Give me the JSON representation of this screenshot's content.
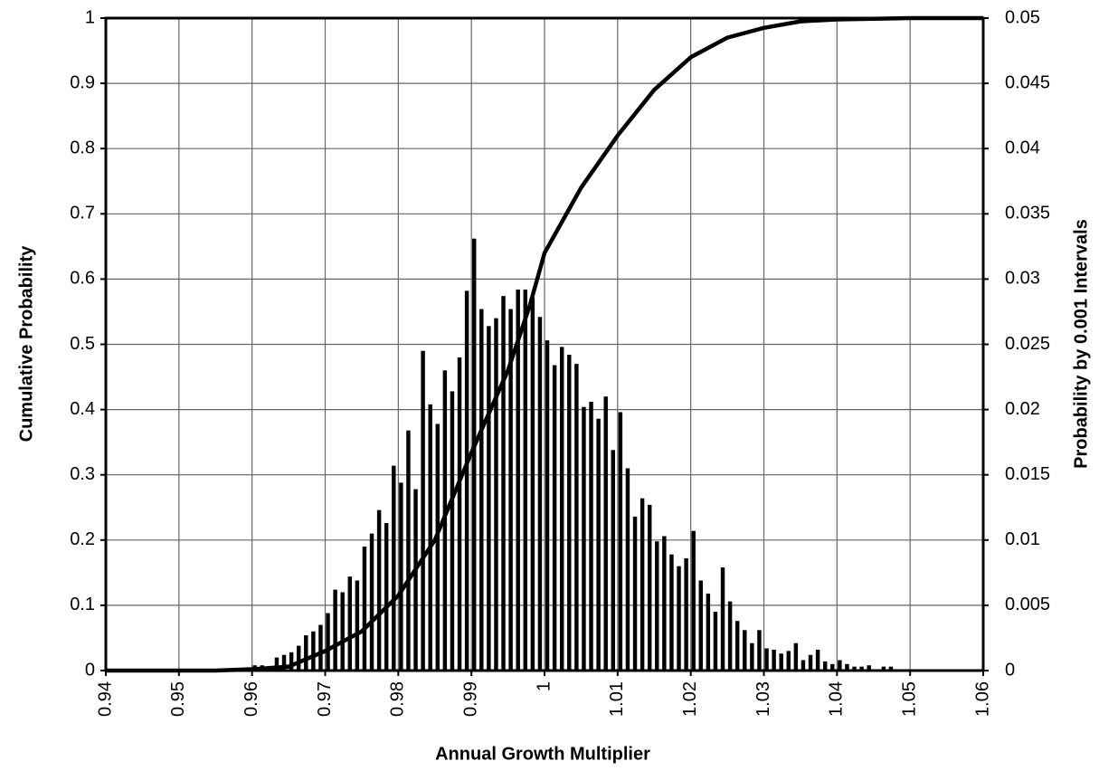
{
  "chart_data": [
    {
      "type": "line",
      "color": "#000000",
      "grid": true,
      "xlabel": "Annual Growth Multiplier",
      "ylabel": "Cumulative Probability",
      "x": [
        0.94,
        0.955,
        0.96,
        0.965,
        0.97,
        0.975,
        0.98,
        0.985,
        0.99,
        0.995,
        0.998,
        1.0,
        1.005,
        1.01,
        1.015,
        1.02,
        1.025,
        1.03,
        1.035,
        1.04,
        1.05,
        1.06
      ],
      "values": [
        0,
        0,
        0.002,
        0.006,
        0.03,
        0.06,
        0.115,
        0.2,
        0.334,
        0.46,
        0.56,
        0.64,
        0.74,
        0.82,
        0.89,
        0.94,
        0.97,
        0.985,
        0.995,
        0.998,
        1,
        1
      ],
      "xlim": [
        0.94,
        1.06
      ],
      "xticks": [
        0.94,
        0.95,
        0.96,
        0.97,
        0.98,
        0.99,
        1,
        1.01,
        1.02,
        1.03,
        1.04,
        1.05,
        1.06
      ],
      "ylim": [
        0,
        1
      ],
      "yticks": [
        0,
        0.1,
        0.2,
        0.3,
        0.4,
        0.5,
        0.6,
        0.7,
        0.8,
        0.9,
        1
      ]
    },
    {
      "type": "histogram",
      "axis": "y2",
      "color": "#000000",
      "y2label": "Probability by 0.001 Intervals",
      "bins": [
        0.96,
        0.961,
        0.962,
        0.963,
        0.964,
        0.965,
        0.966,
        0.967,
        0.968,
        0.969,
        0.97,
        0.971,
        0.972,
        0.973,
        0.974,
        0.975,
        0.976,
        0.977,
        0.978,
        0.979,
        0.98,
        0.981,
        0.982,
        0.983,
        0.984,
        0.985,
        0.986,
        0.987,
        0.988,
        0.989,
        0.99,
        0.991,
        0.992,
        0.993,
        0.994,
        0.995,
        0.996,
        0.997,
        0.998,
        0.999,
        1.0,
        1.001,
        1.002,
        1.003,
        1.004,
        1.005,
        1.006,
        1.007,
        1.008,
        1.009,
        1.01,
        1.011,
        1.012,
        1.013,
        1.014,
        1.015,
        1.016,
        1.017,
        1.018,
        1.019,
        1.02,
        1.021,
        1.022,
        1.023,
        1.024,
        1.025,
        1.026,
        1.027,
        1.028,
        1.029,
        1.03,
        1.031,
        1.032,
        1.033,
        1.034,
        1.035,
        1.036,
        1.037,
        1.038,
        1.039,
        1.04,
        1.041,
        1.042,
        1.043,
        1.044,
        1.045,
        1.046,
        1.047,
        1.048
      ],
      "values": [
        0.0004,
        0.0004,
        0.0003,
        0.001,
        0.0012,
        0.0014,
        0.0019,
        0.0027,
        0.003,
        0.0035,
        0.0044,
        0.0062,
        0.006,
        0.0072,
        0.0069,
        0.0095,
        0.0105,
        0.0123,
        0.0113,
        0.0157,
        0.0144,
        0.0184,
        0.0139,
        0.0245,
        0.0204,
        0.0189,
        0.023,
        0.0214,
        0.024,
        0.0291,
        0.0331,
        0.0277,
        0.0264,
        0.027,
        0.0287,
        0.0277,
        0.0292,
        0.0292,
        0.0286,
        0.0271,
        0.0253,
        0.0234,
        0.0248,
        0.0242,
        0.0235,
        0.0202,
        0.0206,
        0.0193,
        0.021,
        0.0169,
        0.0198,
        0.0155,
        0.0118,
        0.0132,
        0.0127,
        0.0099,
        0.0103,
        0.0089,
        0.008,
        0.0086,
        0.0107,
        0.0069,
        0.0059,
        0.0045,
        0.0079,
        0.0053,
        0.0038,
        0.0031,
        0.0021,
        0.0031,
        0.0017,
        0.0016,
        0.0013,
        0.0015,
        0.0021,
        0.0008,
        0.0012,
        0.0016,
        0.0007,
        0.0005,
        0.0008,
        0.0005,
        0.0003,
        0.0003,
        0.0004,
        0.0001,
        0.0003,
        0.0003
      ],
      "y2lim": [
        0,
        0.05
      ],
      "y2ticks": [
        0,
        0.005,
        0.01,
        0.015,
        0.02,
        0.025,
        0.03,
        0.035,
        0.04,
        0.045,
        0.05
      ]
    }
  ]
}
